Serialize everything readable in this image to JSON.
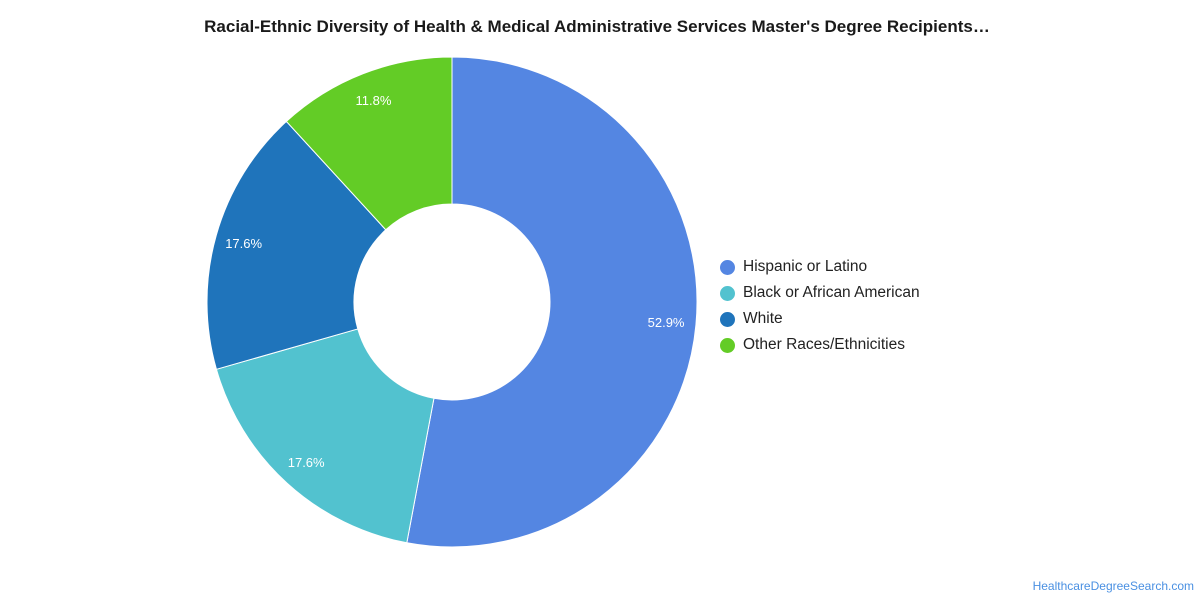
{
  "chart_data": {
    "type": "pie",
    "title": "Racial-Ethnic Diversity of Health & Medical Administrative Services Master's Degree Recipients…",
    "labels": [
      "Hispanic or Latino",
      "Black or African American",
      "White",
      "Other Races/Ethnicities"
    ],
    "values": [
      52.9,
      17.6,
      17.6,
      11.8
    ],
    "value_labels": [
      "52.9%",
      "17.6%",
      "17.6%",
      "11.8%"
    ],
    "colors": [
      "#5486e2",
      "#52c2cf",
      "#1f74bb",
      "#63cc26"
    ],
    "donut": true,
    "legend": "right"
  },
  "footer": {
    "credit": "HealthcareDegreeSearch.com"
  }
}
